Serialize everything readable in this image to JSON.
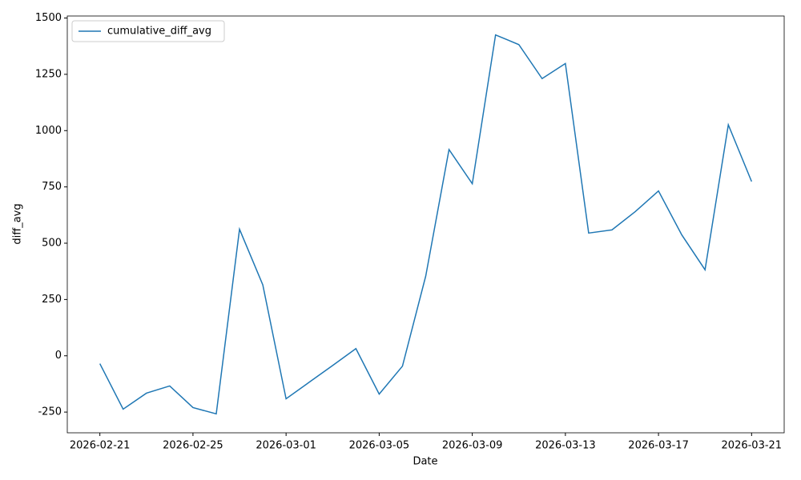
{
  "chart_data": {
    "type": "line",
    "x_label": "Date",
    "y_label": "diff_avg",
    "x": [
      "2026-02-21",
      "2026-02-22",
      "2026-02-23",
      "2026-02-24",
      "2026-02-25",
      "2026-02-26",
      "2026-02-27",
      "2026-02-28",
      "2026-03-01",
      "2026-03-02",
      "2026-03-03",
      "2026-03-04",
      "2026-03-05",
      "2026-03-06",
      "2026-03-07",
      "2026-03-08",
      "2026-03-09",
      "2026-03-10",
      "2026-03-11",
      "2026-03-12",
      "2026-03-13",
      "2026-03-14",
      "2026-03-15",
      "2026-03-16",
      "2026-03-17",
      "2026-03-18",
      "2026-03-19",
      "2026-03-20",
      "2026-03-21"
    ],
    "series": [
      {
        "name": "cumulative_diff_avg",
        "color": "#1f77b4",
        "values": [
          -35,
          -237,
          -166,
          -134,
          -230,
          -258,
          562,
          315,
          -191,
          -117,
          -43,
          32,
          -170,
          -46,
          354,
          916,
          764,
          1425,
          1382,
          1231,
          1298,
          545,
          559,
          640,
          732,
          537,
          382,
          1026,
          774
        ]
      }
    ],
    "xlim": [
      "2026-02-19T14:24",
      "2026-03-22T09:36"
    ],
    "xticks": [
      "2026-02-21",
      "2026-02-25",
      "2026-03-01",
      "2026-03-05",
      "2026-03-09",
      "2026-03-13",
      "2026-03-17",
      "2026-03-21"
    ],
    "ylim": [
      -342,
      1509
    ],
    "yticks": [
      -250,
      0,
      250,
      500,
      750,
      1000,
      1250,
      1500
    ],
    "grid": false,
    "legend": "upper left"
  }
}
